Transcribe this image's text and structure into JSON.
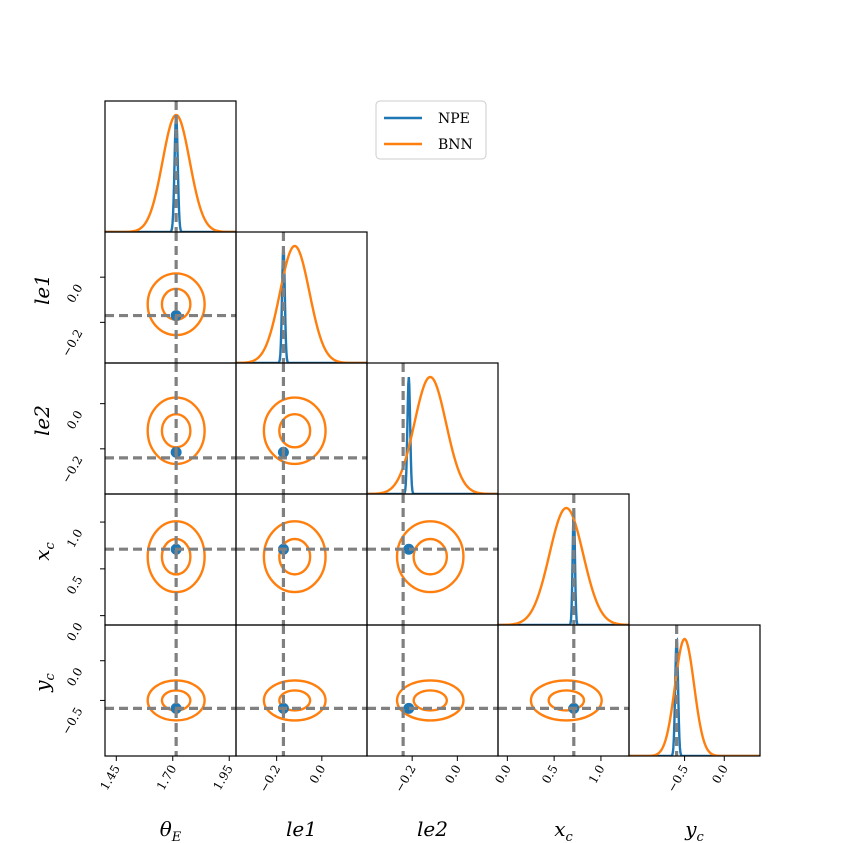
{
  "chart_data": {
    "type": "corner",
    "parameters": [
      {
        "key": "theta_E",
        "label": "θ",
        "sub": "E",
        "range": [
          1.4,
          1.98
        ],
        "ticks": [
          1.45,
          1.7,
          1.95
        ],
        "tick_labels": [
          "1.45",
          "1.70",
          "1.95"
        ],
        "truth": 1.715
      },
      {
        "key": "le1",
        "label": "le1",
        "sub": "",
        "range": [
          -0.38,
          0.2
        ],
        "ticks": [
          -0.2,
          0.0
        ],
        "tick_labels": [
          "−0.2",
          "0.0"
        ],
        "truth": -0.17
      },
      {
        "key": "le2",
        "label": "le2",
        "sub": "",
        "range": [
          -0.4,
          0.18
        ],
        "ticks": [
          -0.2,
          0.0
        ],
        "tick_labels": [
          "−0.2",
          "0.0"
        ],
        "truth": -0.24
      },
      {
        "key": "x_c",
        "label": "x",
        "sub": "c",
        "range": [
          -0.1,
          1.3
        ],
        "ticks": [
          0.0,
          0.5,
          1.0
        ],
        "tick_labels": [
          "0.0",
          "0.5",
          "1.0"
        ],
        "truth": 0.71
      },
      {
        "key": "y_c",
        "label": "y",
        "sub": "c",
        "range": [
          -1.2,
          0.45
        ],
        "ticks": [
          -0.5,
          0.0
        ],
        "tick_labels": [
          "−0.5",
          "0.0"
        ],
        "truth": -0.6
      }
    ],
    "series": [
      {
        "name": "NPE",
        "color": "#1f77b4",
        "means": [
          1.715,
          -0.17,
          -0.215,
          0.71,
          -0.6
        ],
        "sigmas": [
          0.007,
          0.006,
          0.006,
          0.012,
          0.018
        ]
      },
      {
        "name": "BNN",
        "color": "#ff7f0e",
        "means": [
          1.715,
          -0.12,
          -0.12,
          0.63,
          -0.5
        ],
        "sigmas": [
          0.06,
          0.065,
          0.07,
          0.18,
          0.12
        ]
      }
    ],
    "contour_levels_sigma": [
      1.0,
      2.0
    ],
    "truth_line_color": "#808080",
    "legend_position": "upper-middle"
  }
}
